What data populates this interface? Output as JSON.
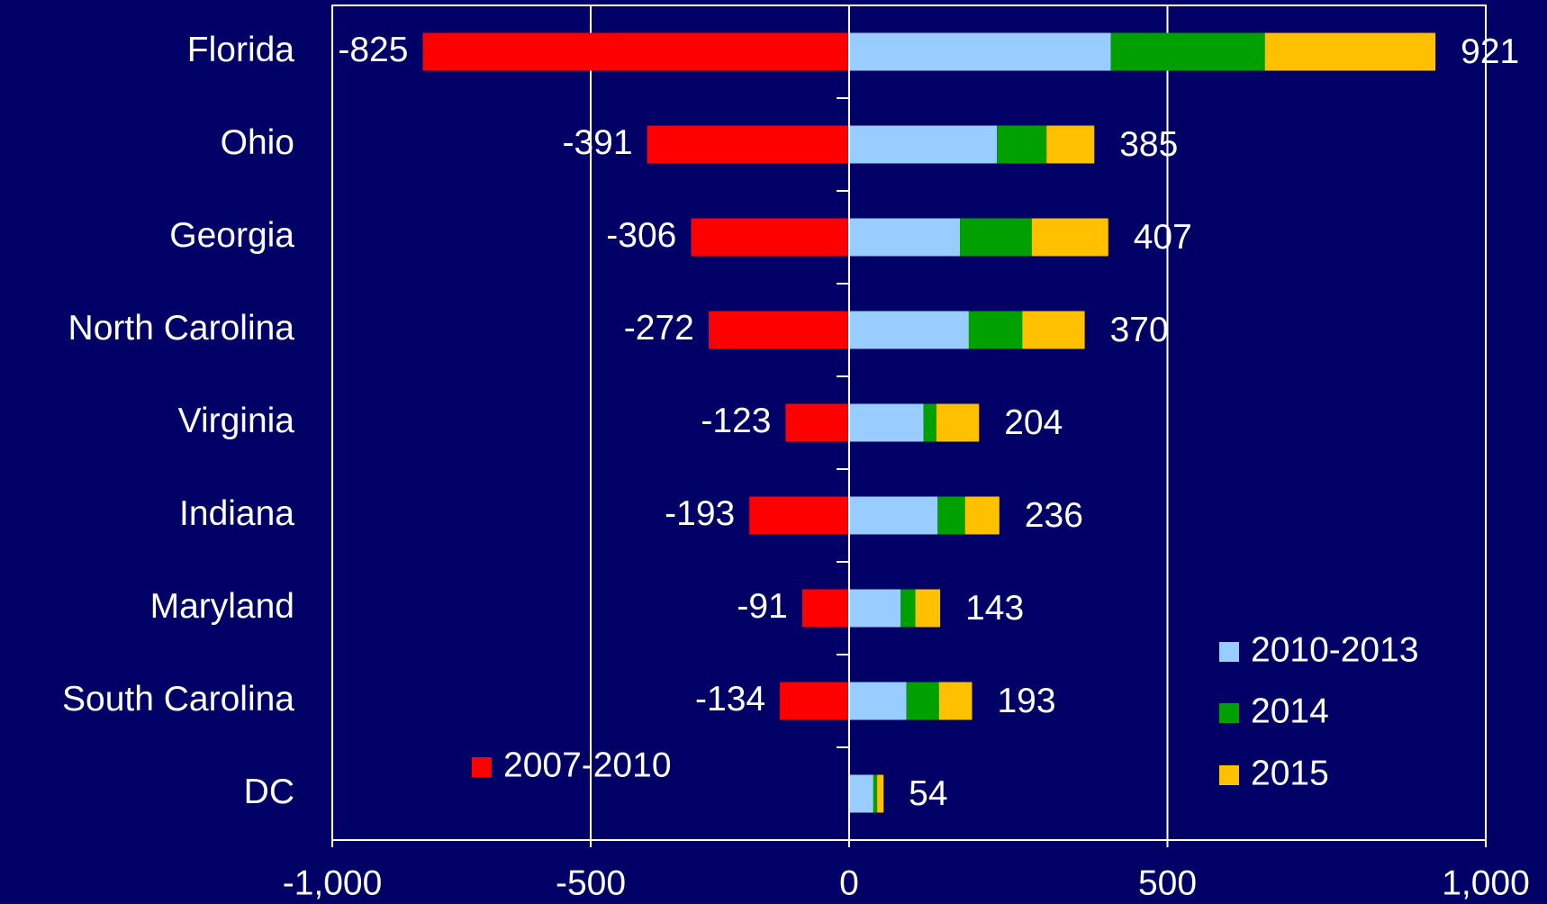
{
  "chart_data": {
    "type": "bar",
    "orientation": "horizontal",
    "stacked": true,
    "categories": [
      "Florida",
      "Ohio",
      "Georgia",
      "North Carolina",
      "Virginia",
      "Indiana",
      "Maryland",
      "South Carolina",
      "DC"
    ],
    "series": [
      {
        "name": "2007-2010",
        "color": "#ff0000",
        "values": [
          -825,
          -391,
          -306,
          -272,
          -123,
          -193,
          -91,
          -134,
          null
        ]
      },
      {
        "name": "2010-2013",
        "color": "#99ccff",
        "values": [
          411,
          232,
          174,
          188,
          117,
          139,
          81,
          90,
          38
        ]
      },
      {
        "name": "2014",
        "color": "#00a000",
        "values": [
          242,
          78,
          113,
          84,
          20,
          43,
          23,
          51,
          6
        ]
      },
      {
        "name": "2015",
        "color": "#ffc000",
        "values": [
          268,
          75,
          120,
          98,
          67,
          54,
          39,
          52,
          10
        ]
      }
    ],
    "totals": [
      921,
      385,
      407,
      370,
      204,
      236,
      143,
      193,
      54
    ],
    "xlim": [
      -1000,
      1000
    ],
    "xticks": [
      {
        "value": -1000,
        "label": "-1,000"
      },
      -500,
      0,
      500,
      {
        "value": 1000,
        "label": "1,000"
      }
    ],
    "grid": true
  }
}
